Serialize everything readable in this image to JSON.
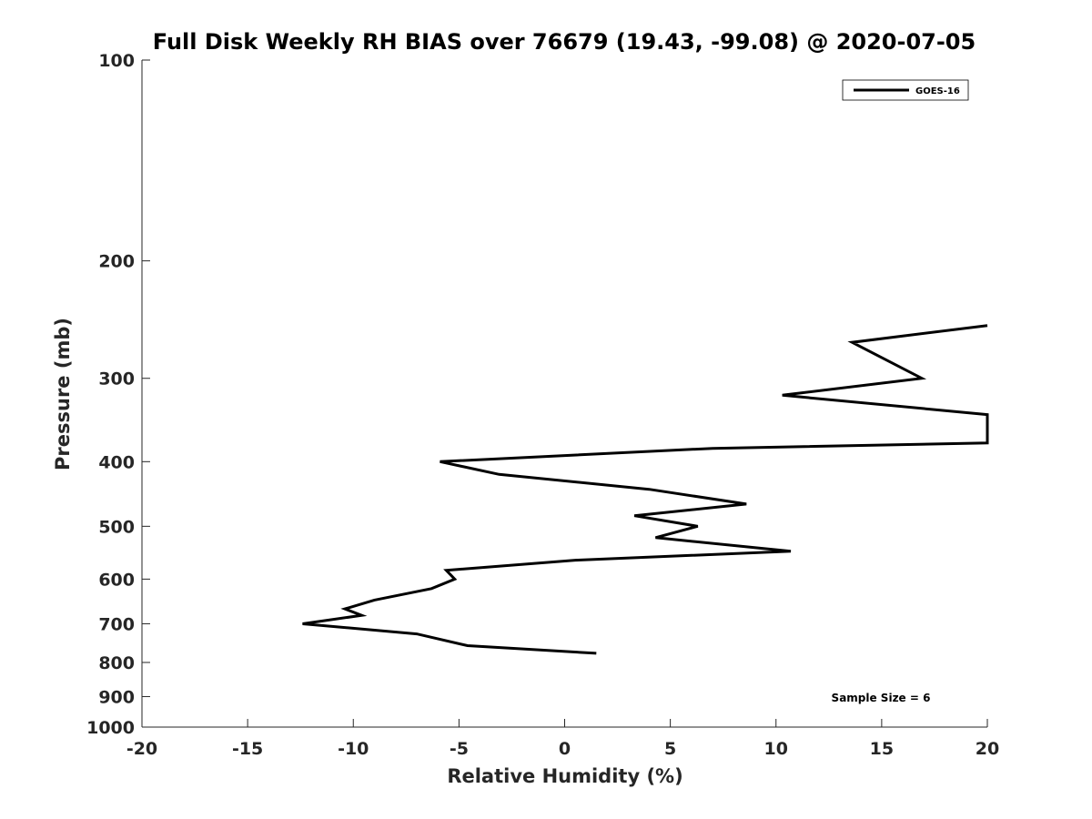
{
  "chart_data": {
    "type": "line",
    "title": "Full Disk Weekly RH BIAS over 76679 (19.43, -99.08) @ 2020-07-05",
    "xlabel": "Relative Humidity (%)",
    "ylabel": "Pressure (mb)",
    "xlim": [
      -20,
      20
    ],
    "ylim": [
      100,
      1000
    ],
    "y_scale": "log",
    "y_reversed": true,
    "grid": false,
    "legend_position": "top-right",
    "line_color": "#000000",
    "x_ticks": [
      "-20",
      "-15",
      "-10",
      "-5",
      "0",
      "5",
      "10",
      "15",
      "20"
    ],
    "y_ticks": [
      "100",
      "200",
      "300",
      "400",
      "500",
      "600",
      "700",
      "800",
      "900",
      "1000"
    ],
    "annotation": "Sample Size = 6",
    "series": [
      {
        "name": "GOES-16",
        "points": [
          {
            "x": 20.0,
            "y": 250
          },
          {
            "x": 13.6,
            "y": 265
          },
          {
            "x": 16.9,
            "y": 300
          },
          {
            "x": 10.3,
            "y": 318
          },
          {
            "x": 20.0,
            "y": 340
          },
          {
            "x": 20.0,
            "y": 375
          },
          {
            "x": 7.0,
            "y": 382
          },
          {
            "x": -5.9,
            "y": 400
          },
          {
            "x": -3.1,
            "y": 418
          },
          {
            "x": 4.0,
            "y": 440
          },
          {
            "x": 8.6,
            "y": 463
          },
          {
            "x": 3.3,
            "y": 482
          },
          {
            "x": 6.3,
            "y": 500
          },
          {
            "x": 4.3,
            "y": 520
          },
          {
            "x": 10.7,
            "y": 545
          },
          {
            "x": 0.5,
            "y": 562
          },
          {
            "x": -5.6,
            "y": 582
          },
          {
            "x": -5.2,
            "y": 600
          },
          {
            "x": -6.3,
            "y": 620
          },
          {
            "x": -9.0,
            "y": 645
          },
          {
            "x": -10.4,
            "y": 665
          },
          {
            "x": -9.6,
            "y": 680
          },
          {
            "x": -12.4,
            "y": 700
          },
          {
            "x": -7.0,
            "y": 725
          },
          {
            "x": -4.6,
            "y": 755
          },
          {
            "x": 1.5,
            "y": 775
          }
        ]
      }
    ]
  }
}
